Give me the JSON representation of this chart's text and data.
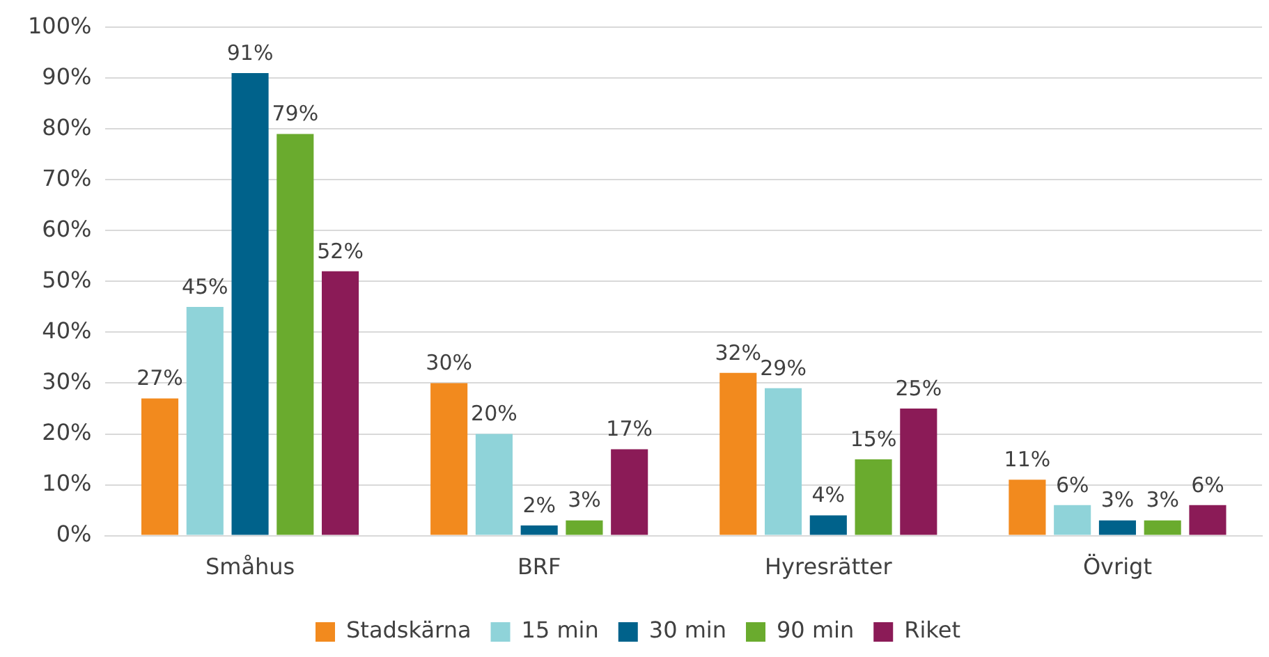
{
  "chart_data": {
    "type": "bar",
    "categories": [
      "Småhus",
      "BRF",
      "Hyresrätter",
      "Övrigt"
    ],
    "series": [
      {
        "name": "Stadskärna",
        "color": "#f28a1e",
        "values": [
          27,
          30,
          32,
          11
        ],
        "value_labels": [
          "27%",
          "30%",
          "32%",
          "11%"
        ]
      },
      {
        "name": "15 min",
        "color": "#8fd3d9",
        "values": [
          45,
          20,
          29,
          6
        ],
        "value_labels": [
          "45%",
          "20%",
          "29%",
          "6%"
        ]
      },
      {
        "name": "30 min",
        "color": "#00628b",
        "values": [
          91,
          2,
          4,
          3
        ],
        "value_labels": [
          "91%",
          "2%",
          "4%",
          "3%"
        ]
      },
      {
        "name": "90 min",
        "color": "#6aab2e",
        "values": [
          79,
          3,
          15,
          3
        ],
        "value_labels": [
          "79%",
          "3%",
          "15%",
          "3%"
        ]
      },
      {
        "name": "Riket",
        "color": "#8b1b57",
        "values": [
          52,
          17,
          25,
          6
        ],
        "value_labels": [
          "52%",
          "17%",
          "25%",
          "6%"
        ]
      }
    ],
    "ylim": [
      0,
      100
    ],
    "yticks": [
      {
        "value": 0,
        "label": "0%"
      },
      {
        "value": 10,
        "label": "10%"
      },
      {
        "value": 20,
        "label": "20%"
      },
      {
        "value": 30,
        "label": "30%"
      },
      {
        "value": 40,
        "label": "40%"
      },
      {
        "value": 50,
        "label": "50%"
      },
      {
        "value": 60,
        "label": "60%"
      },
      {
        "value": 70,
        "label": "70%"
      },
      {
        "value": 80,
        "label": "80%"
      },
      {
        "value": 90,
        "label": "90%"
      },
      {
        "value": 100,
        "label": "100%"
      }
    ],
    "grid": "y",
    "legend": "bottom"
  }
}
